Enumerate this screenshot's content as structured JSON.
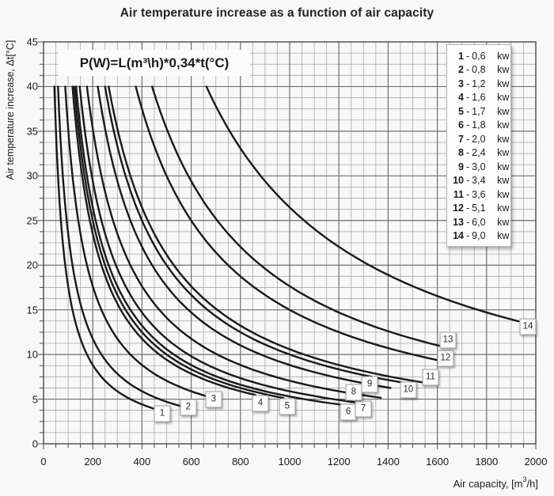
{
  "chart_data": {
    "type": "line",
    "title": "Air temperature increase as a function of air capacity",
    "formula": "P(W)=L(m³\\h)*0,34*t(°C)",
    "relation": "t_degC = P_W / (0.34 * L_m3h)",
    "axes": {
      "x_title": {
        "pre": "Air capacity, [m",
        "sup": "3",
        "post": "/h]"
      },
      "y_title": "Air temperature increase, Δt[°C]",
      "xlim": [
        0,
        2000
      ],
      "ylim": [
        0,
        45
      ],
      "x_major_step": 200,
      "x_minor_step": 50,
      "y_major_step": 5,
      "y_minor_step": 1.25,
      "x_ticks": [
        0,
        200,
        400,
        600,
        800,
        1000,
        1200,
        1400,
        1600,
        1800,
        2000
      ],
      "y_ticks": [
        0,
        5,
        10,
        15,
        20,
        25,
        30,
        35,
        40,
        45
      ]
    },
    "legend": {
      "unit": "kw",
      "dash": "-",
      "entries": [
        {
          "num": "1",
          "value": "0,6"
        },
        {
          "num": "2",
          "value": "0,8"
        },
        {
          "num": "3",
          "value": "1,2"
        },
        {
          "num": "4",
          "value": "1,6"
        },
        {
          "num": "5",
          "value": "1,7"
        },
        {
          "num": "6",
          "value": "1,8"
        },
        {
          "num": "7",
          "value": "2,0"
        },
        {
          "num": "8",
          "value": "2,4"
        },
        {
          "num": "9",
          "value": "3,0"
        },
        {
          "num": "10",
          "value": "3,4"
        },
        {
          "num": "11",
          "value": "3,6"
        },
        {
          "num": "12",
          "value": "5,1"
        },
        {
          "num": "13",
          "value": "6,0"
        },
        {
          "num": "14",
          "value": "9,0"
        }
      ]
    },
    "series": [
      {
        "num": "1",
        "power_kw": 0.6,
        "t_start": 40,
        "l_end": 480,
        "label": {
          "l": 482,
          "t": 3.4
        }
      },
      {
        "num": "2",
        "power_kw": 0.8,
        "t_start": 40,
        "l_end": 585,
        "label": {
          "l": 588,
          "t": 4.1
        }
      },
      {
        "num": "3",
        "power_kw": 1.2,
        "t_start": 40,
        "l_end": 690,
        "label": {
          "l": 691,
          "t": 5.0
        }
      },
      {
        "num": "4",
        "power_kw": 1.6,
        "t_start": 40,
        "l_end": 860,
        "label": {
          "l": 881,
          "t": 4.5
        }
      },
      {
        "num": "5",
        "power_kw": 1.7,
        "t_start": 40,
        "l_end": 975,
        "label": {
          "l": 990,
          "t": 4.2
        }
      },
      {
        "num": "6",
        "power_kw": 1.8,
        "t_start": 40,
        "l_end": 1250,
        "label": {
          "l": 1238,
          "t": 3.5
        }
      },
      {
        "num": "7",
        "power_kw": 2.0,
        "t_start": 40,
        "l_end": 1315,
        "label": {
          "l": 1299,
          "t": 3.9
        }
      },
      {
        "num": "8",
        "power_kw": 2.4,
        "t_start": 40,
        "l_end": 1370,
        "label": {
          "l": 1260,
          "t": 5.8
        }
      },
      {
        "num": "9",
        "power_kw": 3.0,
        "t_start": 40,
        "l_end": 1410,
        "label": {
          "l": 1325,
          "t": 6.6
        }
      },
      {
        "num": "10",
        "power_kw": 3.4,
        "t_start": 40,
        "l_end": 1480,
        "label": {
          "l": 1482,
          "t": 6.0
        }
      },
      {
        "num": "11",
        "power_kw": 3.6,
        "t_start": 40,
        "l_end": 1570,
        "label": {
          "l": 1572,
          "t": 7.4
        }
      },
      {
        "num": "12",
        "power_kw": 5.1,
        "t_start": 40,
        "l_end": 1630,
        "label": {
          "l": 1633,
          "t": 9.6
        }
      },
      {
        "num": "13",
        "power_kw": 6.0,
        "t_start": 40,
        "l_end": 1640,
        "label": {
          "l": 1643,
          "t": 11.6
        }
      },
      {
        "num": "14",
        "power_kw": 9.0,
        "t_start": 40,
        "l_end": 1930,
        "label": {
          "l": 1968,
          "t": 13.1
        }
      }
    ]
  }
}
